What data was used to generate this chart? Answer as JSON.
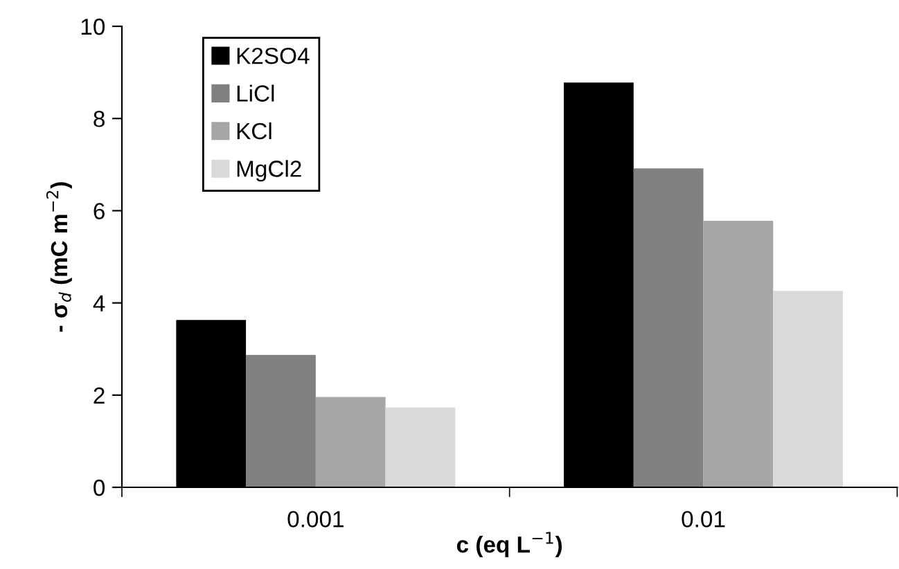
{
  "chart_data": {
    "type": "bar",
    "xlabel": "c (eq L$^{−1}$)",
    "ylabel": "- σ$_{d}$ (mC m$^{−2}$)",
    "categories": [
      "0.001",
      "0.01"
    ],
    "series": [
      {
        "name": "K2SO4",
        "color": "#000000",
        "values": [
          3.63,
          8.78
        ]
      },
      {
        "name": "LiCl",
        "color": "#808080",
        "values": [
          2.87,
          6.92
        ]
      },
      {
        "name": "KCl",
        "color": "#a6a6a6",
        "values": [
          1.96,
          5.78
        ]
      },
      {
        "name": "MgCl2",
        "color": "#d9d9d9",
        "values": [
          1.73,
          4.26
        ]
      }
    ],
    "ylim": [
      0,
      10
    ],
    "yticks": [
      0,
      2,
      4,
      6,
      8,
      10
    ],
    "grid": false,
    "legend": "top left"
  }
}
